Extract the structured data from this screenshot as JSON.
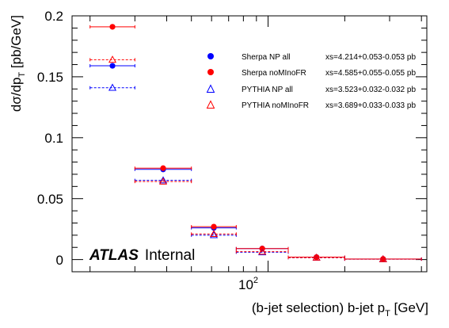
{
  "chart_data": {
    "type": "scatter",
    "x_axis": {
      "label": "(b-jet selection) b-jet p",
      "label_sub": "T",
      "label_unit": " [GeV]",
      "scale": "log",
      "range": [
        17,
        420
      ],
      "tick_label": "10",
      "tick_label_sup": "2"
    },
    "y_axis": {
      "label": "dσ/dp",
      "label_sub": "T",
      "label_unit": " [pb/GeV]",
      "range": [
        -0.01,
        0.2
      ],
      "ticks": [
        0,
        0.05,
        0.1,
        0.15,
        0.2
      ],
      "tick_labels": [
        "0",
        "0.05",
        "0.1",
        "0.15",
        "0.2"
      ]
    },
    "atlas_label": "ATLAS",
    "atlas_sublabel": "Internal",
    "bins": [
      [
        20,
        30
      ],
      [
        30,
        50
      ],
      [
        50,
        75
      ],
      [
        75,
        120
      ],
      [
        120,
        200
      ],
      [
        200,
        400
      ]
    ],
    "series": [
      {
        "name": "Sherpa NP all",
        "xs": "xs=4.214+0.053-0.053 pb",
        "color": "#0000ff",
        "marker": "circle",
        "line": "solid",
        "values": [
          0.159,
          0.074,
          0.026,
          0.009,
          0.002,
          0.0004
        ]
      },
      {
        "name": "Sherpa noMInoFR",
        "xs": "xs=4.585+0.055-0.055 pb",
        "color": "#ff0000",
        "marker": "circle",
        "line": "solid",
        "values": [
          0.191,
          0.075,
          0.027,
          0.009,
          0.002,
          0.0005
        ]
      },
      {
        "name": "PYTHIA NP all",
        "xs": "xs=3.523+0.032-0.032 pb",
        "color": "#0000ff",
        "marker": "triangle",
        "line": "dashed",
        "values": [
          0.141,
          0.065,
          0.02,
          0.006,
          0.0015,
          0.0003
        ]
      },
      {
        "name": "PYTHIA noMInoFR",
        "xs": "xs=3.689+0.033-0.033 pb",
        "color": "#ff0000",
        "marker": "triangle",
        "line": "dashed",
        "values": [
          0.164,
          0.064,
          0.021,
          0.0065,
          0.0016,
          0.0003
        ]
      }
    ],
    "legend_position": "top-right",
    "grid": false
  }
}
